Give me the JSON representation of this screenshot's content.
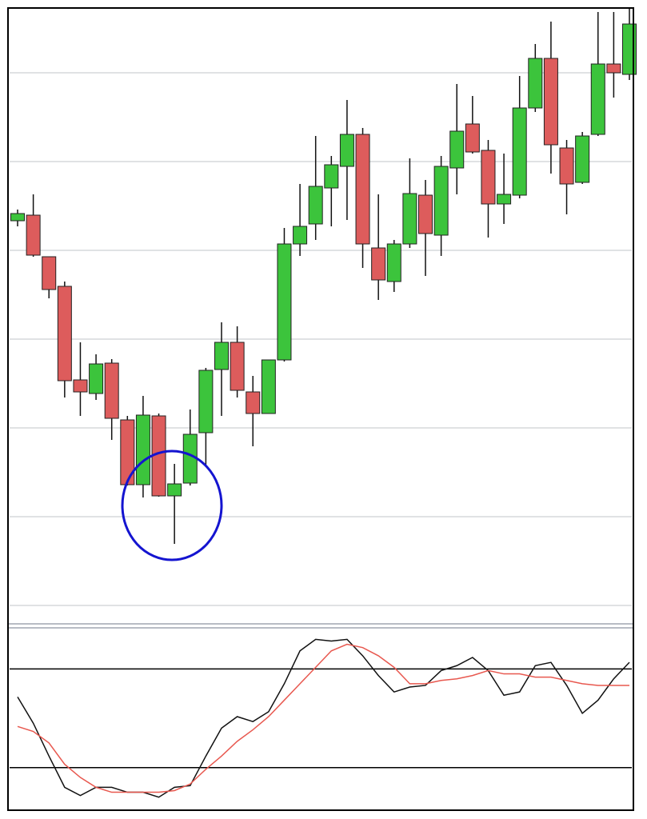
{
  "chart_data": [
    {
      "type": "candlestick",
      "up_color": "#3cc43c",
      "down_color": "#dd5c5c",
      "grid": true,
      "ylim": [
        0,
        770
      ],
      "yticks": [
        23,
        134,
        245,
        356,
        467,
        578,
        689
      ],
      "open": [
        504,
        511,
        459,
        422,
        305,
        288,
        326,
        255,
        174,
        260,
        160,
        176,
        239,
        318,
        352,
        290,
        263,
        330,
        475,
        500,
        545,
        572,
        612,
        470,
        428,
        475,
        536,
        486,
        570,
        625,
        592,
        525,
        536,
        645,
        707,
        595,
        552,
        612,
        700,
        687
      ],
      "high": [
        518,
        537,
        459,
        428,
        352,
        337,
        331,
        260,
        285,
        263,
        200,
        268,
        320,
        377,
        372,
        310,
        330,
        495,
        550,
        610,
        585,
        655,
        620,
        537,
        480,
        582,
        555,
        585,
        675,
        660,
        605,
        588,
        685,
        725,
        753,
        605,
        615,
        765,
        765,
        770
      ],
      "low": [
        497,
        459,
        407,
        283,
        260,
        280,
        230,
        173,
        158,
        159,
        100,
        173,
        197,
        260,
        283,
        222,
        263,
        328,
        460,
        480,
        497,
        505,
        445,
        405,
        415,
        470,
        435,
        460,
        537,
        588,
        483,
        500,
        532,
        640,
        563,
        512,
        550,
        610,
        658,
        680
      ],
      "close": [
        513,
        461,
        418,
        304,
        290,
        325,
        257,
        174,
        261,
        160,
        175,
        237,
        317,
        352,
        292,
        263,
        330,
        475,
        497,
        547,
        574,
        612,
        475,
        430,
        475,
        538,
        488,
        572,
        616,
        590,
        525,
        537,
        645,
        707,
        599,
        550,
        610,
        700,
        689,
        750
      ]
    },
    {
      "type": "line",
      "ylim": [
        -3,
        105
      ],
      "levels": [
        20,
        80
      ],
      "level_color": "#000000",
      "series": [
        {
          "color": "#111111",
          "values": [
            63,
            47,
            27,
            8,
            3,
            8,
            8,
            5,
            5,
            2,
            8,
            9,
            27,
            44,
            51,
            48,
            54,
            71,
            91,
            98,
            97,
            98,
            88,
            76,
            66,
            69,
            70,
            79,
            82,
            87,
            79,
            64,
            66,
            82,
            84,
            70,
            53,
            61,
            74,
            84
          ]
        },
        {
          "color": "#e8584f",
          "values": [
            45,
            42,
            35,
            22,
            14,
            8,
            5,
            5,
            5,
            5,
            6,
            10,
            19,
            27,
            36,
            43,
            51,
            61,
            71,
            81,
            91,
            95,
            93,
            88,
            81,
            71,
            71,
            73,
            74,
            76,
            79,
            77,
            77,
            75,
            75,
            73,
            71,
            70,
            70,
            70
          ]
        }
      ]
    }
  ]
}
